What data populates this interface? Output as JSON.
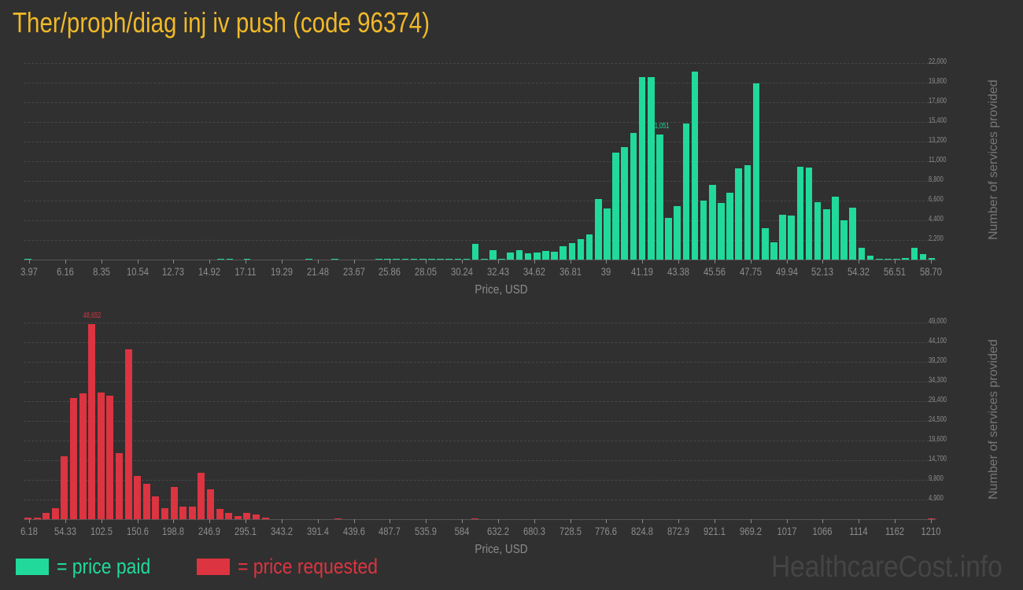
{
  "title": "Ther/proph/diag inj iv push (code 96374)",
  "colors": {
    "paid": "#21d99a",
    "requested": "#dc3440",
    "title": "#f0b928",
    "background": "#303030"
  },
  "legend": {
    "paid_label": "= price paid",
    "requested_label": "= price requested"
  },
  "watermark": "HealthcareCost.info",
  "chart_data": [
    {
      "type": "bar",
      "title": "Price paid",
      "xlabel": "Price, USD",
      "ylabel": "Number of services provided",
      "ylim": [
        0,
        22000
      ],
      "yticks": [
        "2,200",
        "4,400",
        "6,600",
        "8,800",
        "11,000",
        "13,200",
        "15,400",
        "17,600",
        "19,800",
        "22,000"
      ],
      "xticks": [
        "3.97",
        "6.16",
        "8.35",
        "10.54",
        "12.73",
        "14.92",
        "17.11",
        "19.29",
        "21.48",
        "23.67",
        "25.86",
        "28.05",
        "30.24",
        "32.43",
        "34.62",
        "36.81",
        "39",
        "41.19",
        "43.38",
        "45.56",
        "47.75",
        "49.94",
        "52.13",
        "54.32",
        "56.51",
        "58.70"
      ],
      "peak_label": "21,051",
      "peak_index": 72,
      "grid": true,
      "values": [
        80,
        0,
        0,
        0,
        0,
        0,
        0,
        0,
        0,
        0,
        0,
        0,
        0,
        0,
        0,
        0,
        0,
        0,
        0,
        0,
        0,
        0,
        30,
        40,
        0,
        60,
        0,
        0,
        0,
        0,
        0,
        0,
        30,
        0,
        0,
        30,
        0,
        0,
        0,
        0,
        30,
        30,
        80,
        60,
        60,
        40,
        60,
        80,
        40,
        40,
        60,
        1800,
        80,
        1100,
        100,
        820,
        1050,
        720,
        820,
        950,
        900,
        1500,
        1850,
        2300,
        2850,
        6800,
        5700,
        12000,
        12600,
        14200,
        20400,
        20400,
        14000,
        4700,
        6000,
        15200,
        21051,
        6600,
        8400,
        6300,
        7500,
        10200,
        10600,
        19700,
        3500,
        1900,
        5000,
        4900,
        10400,
        10300,
        6400,
        5600,
        7000,
        4400,
        5800,
        1300,
        400,
        80,
        80,
        80,
        200,
        1300,
        600,
        200
      ],
      "color": "#21d99a"
    },
    {
      "type": "bar",
      "title": "Price requested",
      "xlabel": "Price, USD",
      "ylabel": "Number of services provided",
      "ylim": [
        0,
        49000
      ],
      "yticks": [
        "4,900",
        "9,800",
        "14,700",
        "19,600",
        "24,500",
        "29,400",
        "34,300",
        "39,200",
        "44,100",
        "49,000"
      ],
      "xticks": [
        "6.18",
        "54.33",
        "102.5",
        "150.6",
        "198.8",
        "246.9",
        "295.1",
        "343.2",
        "391.4",
        "439.6",
        "487.7",
        "535.9",
        "584",
        "632.2",
        "680.3",
        "728.5",
        "776.6",
        "824.8",
        "872.9",
        "921.1",
        "969.2",
        "1017",
        "1066",
        "1114",
        "1162",
        "1210"
      ],
      "peak_label": "48,652",
      "peak_index": 7,
      "grid": true,
      "values": [
        300,
        300,
        1500,
        2800,
        15700,
        30200,
        31400,
        48652,
        31600,
        30700,
        16500,
        42400,
        10800,
        8800,
        5600,
        2800,
        8100,
        3200,
        3200,
        11500,
        7400,
        2500,
        1600,
        800,
        1500,
        1200,
        400,
        0,
        0,
        0,
        0,
        0,
        0,
        0,
        200,
        0,
        0,
        0,
        0,
        0,
        0,
        0,
        0,
        0,
        0,
        0,
        0,
        0,
        0,
        200,
        0,
        0,
        0,
        0,
        0,
        0,
        0,
        0,
        0,
        0,
        0,
        0,
        0,
        0,
        0,
        0,
        0,
        0,
        0,
        0,
        0,
        0,
        0,
        0,
        0,
        0,
        0,
        0,
        0,
        0,
        0,
        0,
        0,
        0,
        0,
        0,
        0,
        0,
        0,
        0,
        0,
        0,
        0,
        0,
        0,
        0,
        0,
        0,
        0,
        200
      ],
      "color": "#dc3440"
    }
  ]
}
